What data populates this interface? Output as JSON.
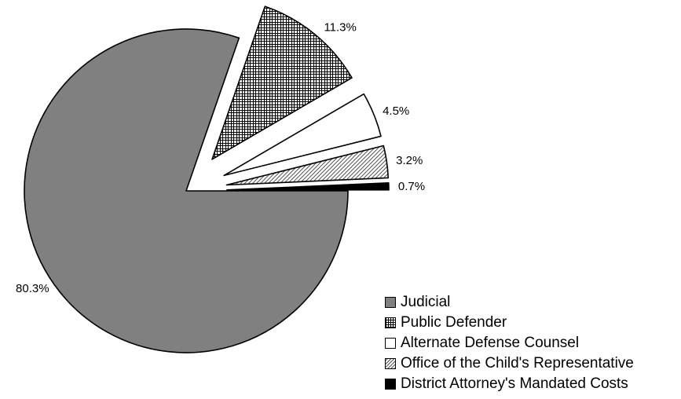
{
  "chart_data": {
    "type": "pie",
    "categories": [
      "Judicial",
      "Public Defender",
      "Alternate Defense Counsel",
      "Office of the Child's Representative",
      "District Attorney's Mandated Costs"
    ],
    "values": [
      80.3,
      11.3,
      4.5,
      3.2,
      0.7
    ],
    "data_labels": [
      "80.3%",
      "11.3%",
      "4.5%",
      "3.2%",
      "0.7%"
    ],
    "exploded": [
      false,
      true,
      true,
      true,
      true
    ],
    "colors": [
      "#808080",
      "#ffffff",
      "#ffffff",
      "#ffffff",
      "#000000"
    ],
    "patterns": [
      "solid",
      "crosshatch",
      "none",
      "diagonal",
      "solid"
    ],
    "legend_position": "bottom-right"
  }
}
